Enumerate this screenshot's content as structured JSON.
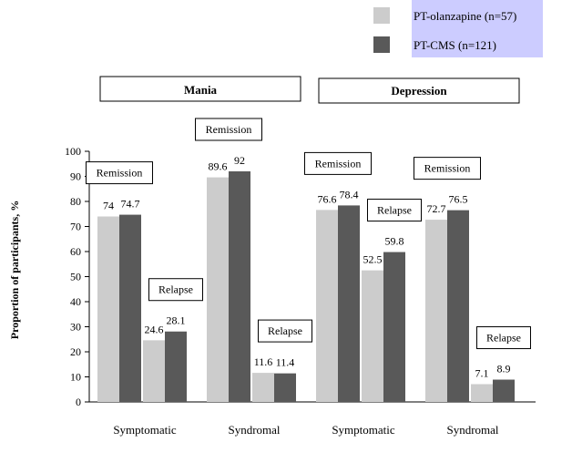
{
  "legend": {
    "items": [
      {
        "name": "PT-olanzapine (n=57)",
        "color": "#cccccc"
      },
      {
        "name": "PT-CMS (n=121)",
        "color": "#595959"
      }
    ],
    "background": "#ccccff"
  },
  "panels": [
    "Mania",
    "Depression"
  ],
  "chart_data": {
    "type": "bar",
    "ylabel": "Proportion of participants, %",
    "ylim": [
      0,
      100
    ],
    "yticks": [
      0,
      10,
      20,
      30,
      40,
      50,
      60,
      70,
      80,
      90,
      100
    ],
    "categories": [
      "Symptomatic",
      "Syndromal",
      "Symptomatic",
      "Syndromal"
    ],
    "category_panels": [
      "Mania",
      "Mania",
      "Depression",
      "Depression"
    ],
    "subgroups": [
      "Remission",
      "Relapse"
    ],
    "series": [
      {
        "name": "PT-olanzapine (n=57)",
        "color": "#cccccc",
        "values": [
          [
            74,
            24.6
          ],
          [
            89.6,
            11.6
          ],
          [
            76.6,
            52.5
          ],
          [
            72.7,
            7.1
          ]
        ]
      },
      {
        "name": "PT-CMS (n=121)",
        "color": "#595959",
        "values": [
          [
            74.7,
            28.1
          ],
          [
            92,
            11.4
          ],
          [
            78.4,
            59.8
          ],
          [
            76.5,
            8.9
          ]
        ]
      }
    ],
    "value_labels": [
      [
        [
          "74",
          "24.6"
        ],
        [
          "89.6",
          "11.6"
        ],
        [
          "76.6",
          "52.5"
        ],
        [
          "72.7",
          "7.1"
        ]
      ],
      [
        [
          "74.7",
          "28.1"
        ],
        [
          "92",
          "11.4"
        ],
        [
          "78.4",
          "59.8"
        ],
        [
          "76.5",
          "8.9"
        ]
      ]
    ],
    "annotations": [
      [
        "Remission",
        "Relapse"
      ],
      [
        "Remission",
        "Relapse"
      ],
      [
        "Remission",
        "Relapse"
      ],
      [
        "Remission",
        "Relapse"
      ]
    ]
  }
}
